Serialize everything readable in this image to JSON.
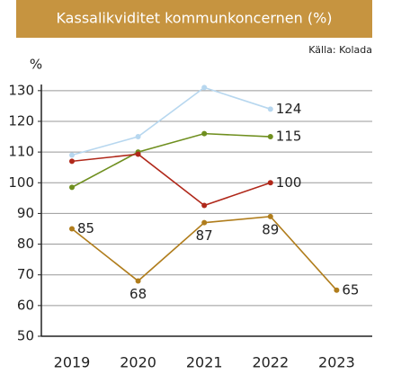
{
  "chart_data": {
    "type": "line",
    "title": "Kassalikviditet kommunkoncernen (%)",
    "source": "Källa: Kolada",
    "y_label": "%",
    "categories": [
      "2019",
      "2020",
      "2021",
      "2022",
      "2023"
    ],
    "ylim": [
      50,
      132
    ],
    "yticks": [
      50,
      60,
      70,
      80,
      90,
      100,
      110,
      120,
      130
    ],
    "grid": true,
    "series": [
      {
        "color": "#b7d7ef",
        "values": [
          109,
          115,
          131,
          124,
          null
        ],
        "value_labels": [
          null,
          null,
          null,
          "124",
          null
        ]
      },
      {
        "color": "#6f8f1f",
        "values": [
          98.5,
          110,
          116,
          115,
          null
        ],
        "value_labels": [
          null,
          null,
          null,
          "115",
          null
        ]
      },
      {
        "color": "#b0281a",
        "values": [
          107,
          109.3,
          92.6,
          100,
          null
        ],
        "value_labels": [
          null,
          null,
          null,
          "100",
          null
        ]
      },
      {
        "color": "#b07d1c",
        "values": [
          85,
          68,
          87,
          89,
          65
        ],
        "value_labels": [
          "85",
          "68",
          "87",
          "89",
          "65"
        ]
      }
    ]
  }
}
